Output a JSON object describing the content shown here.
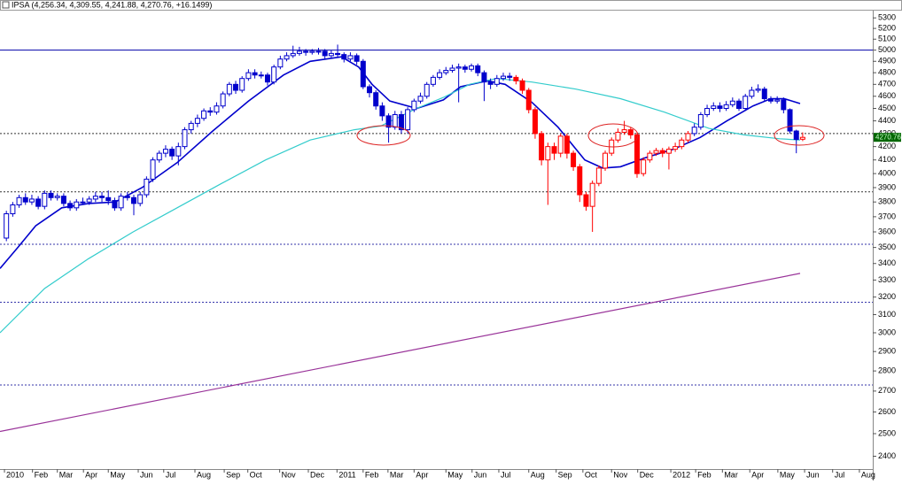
{
  "chart_data": {
    "type": "candlestick",
    "title": "IPSA (4,256.34, 4,309.55, 4,241.88, 4,270.76, +16.1499)",
    "log": true,
    "ylim": [
      2345,
      5370
    ],
    "yticks": [
      2400,
      2500,
      2600,
      2700,
      2800,
      2900,
      3000,
      3100,
      3200,
      3300,
      3400,
      3500,
      3600,
      3700,
      3800,
      3900,
      4000,
      4100,
      4200,
      4300,
      4400,
      4500,
      4600,
      4700,
      4800,
      4900,
      5000,
      5100,
      5200,
      5300
    ],
    "xlim": [
      -1,
      136
    ],
    "xticks": [
      {
        "value": -0.3,
        "label": "2010"
      },
      {
        "value": 4.1,
        "label": "Feb"
      },
      {
        "value": 8,
        "label": "Mar"
      },
      {
        "value": 12.1,
        "label": "Apr"
      },
      {
        "value": 16,
        "label": "May"
      },
      {
        "value": 20.7,
        "label": "Jun"
      },
      {
        "value": 24.7,
        "label": "Jul"
      },
      {
        "value": 29.6,
        "label": "Aug"
      },
      {
        "value": 34.2,
        "label": "Sep"
      },
      {
        "value": 37.9,
        "label": "Oct"
      },
      {
        "value": 42.9,
        "label": "Nov"
      },
      {
        "value": 47.4,
        "label": "Dec"
      },
      {
        "value": 51.9,
        "label": "2011"
      },
      {
        "value": 56,
        "label": "Feb"
      },
      {
        "value": 59.9,
        "label": "Mar"
      },
      {
        "value": 64,
        "label": "Apr"
      },
      {
        "value": 69,
        "label": "May"
      },
      {
        "value": 73.1,
        "label": "Jun"
      },
      {
        "value": 77.3,
        "label": "Jul"
      },
      {
        "value": 82,
        "label": "Aug"
      },
      {
        "value": 86.3,
        "label": "Sep"
      },
      {
        "value": 90.5,
        "label": "Oct"
      },
      {
        "value": 95,
        "label": "Nov"
      },
      {
        "value": 99.1,
        "label": "Dec"
      },
      {
        "value": 104.3,
        "label": "2012"
      },
      {
        "value": 108.2,
        "label": "Feb"
      },
      {
        "value": 112.4,
        "label": "Mar"
      },
      {
        "value": 116.7,
        "label": "Apr"
      },
      {
        "value": 121.1,
        "label": "May"
      },
      {
        "value": 125.3,
        "label": "Jun"
      },
      {
        "value": 129.7,
        "label": "Jul"
      },
      {
        "value": 133.9,
        "label": "Aug"
      }
    ],
    "x": [
      0,
      1,
      2,
      3,
      4,
      5,
      6,
      7,
      8,
      9,
      10,
      11,
      12,
      13,
      14,
      15,
      16,
      17,
      18,
      19,
      20,
      21,
      22,
      23,
      24,
      25,
      26,
      27,
      28,
      29,
      30,
      31,
      32,
      33,
      34,
      35,
      36,
      37,
      38,
      39,
      40,
      41,
      42,
      43,
      44,
      45,
      46,
      47,
      48,
      49,
      50,
      51,
      52,
      53,
      54,
      55,
      56,
      57,
      58,
      59,
      60,
      61,
      62,
      63,
      64,
      65,
      66,
      67,
      68,
      69,
      70,
      71,
      72,
      73,
      74,
      75,
      76,
      77,
      78,
      79,
      80,
      81,
      82,
      83,
      84,
      85,
      86,
      87,
      88,
      89,
      90,
      91,
      92,
      93,
      94,
      95,
      96,
      97,
      98,
      99,
      100,
      101,
      102,
      103,
      104,
      105,
      106,
      107,
      108,
      109,
      110,
      111,
      112,
      113,
      114,
      115,
      116,
      117,
      118,
      119,
      120,
      121,
      122,
      123,
      124,
      125
    ],
    "open": [
      3560,
      3720,
      3780,
      3830,
      3800,
      3820,
      3770,
      3860,
      3830,
      3840,
      3790,
      3760,
      3800,
      3800,
      3820,
      3840,
      3830,
      3810,
      3760,
      3840,
      3830,
      3790,
      3850,
      3960,
      4100,
      4150,
      4180,
      4130,
      4200,
      4330,
      4380,
      4420,
      4480,
      4470,
      4520,
      4620,
      4700,
      4650,
      4750,
      4800,
      4780,
      4780,
      4720,
      4850,
      4920,
      4950,
      4970,
      4990,
      4980,
      4990,
      4990,
      4950,
      4970,
      4960,
      4920,
      4950,
      4900,
      4680,
      4630,
      4520,
      4440,
      4350,
      4450,
      4330,
      4490,
      4560,
      4600,
      4700,
      4760,
      4800,
      4820,
      4840,
      4850,
      4830,
      4860,
      4800,
      4720,
      4700,
      4750,
      4770,
      4760,
      4730,
      4650,
      4490,
      4300,
      4100,
      4200,
      4150,
      4280,
      4150,
      4050,
      3850,
      3770,
      3930,
      4040,
      4150,
      4250,
      4310,
      4330,
      4290,
      4000,
      4100,
      4150,
      4170,
      4150,
      4180,
      4200,
      4250,
      4300,
      4350,
      4450,
      4500,
      4520,
      4500,
      4530,
      4560,
      4500,
      4600,
      4650,
      4660,
      4580,
      4560,
      4570,
      4490,
      4320,
      4256.34
    ],
    "high": [
      3740,
      3800,
      3850,
      3860,
      3850,
      3840,
      3880,
      3880,
      3860,
      3860,
      3810,
      3820,
      3830,
      3840,
      3870,
      3870,
      3880,
      3830,
      3860,
      3870,
      3850,
      3870,
      3980,
      4120,
      4170,
      4210,
      4200,
      4230,
      4350,
      4400,
      4450,
      4500,
      4510,
      4550,
      4640,
      4720,
      4730,
      4770,
      4830,
      4830,
      4810,
      4800,
      4870,
      4950,
      4980,
      5040,
      5030,
      5010,
      5010,
      5020,
      5010,
      5000,
      5050,
      4980,
      4980,
      4970,
      4920,
      4700,
      4650,
      4550,
      4460,
      4480,
      4480,
      4510,
      4580,
      4630,
      4720,
      4780,
      4830,
      4850,
      4870,
      4880,
      4870,
      4880,
      4880,
      4820,
      4750,
      4780,
      4800,
      4800,
      4780,
      4750,
      4670,
      4510,
      4320,
      4230,
      4230,
      4300,
      4300,
      4170,
      4070,
      3870,
      3950,
      4060,
      4170,
      4270,
      4340,
      4400,
      4350,
      4310,
      4120,
      4170,
      4190,
      4190,
      4200,
      4230,
      4270,
      4320,
      4380,
      4470,
      4530,
      4550,
      4550,
      4560,
      4590,
      4580,
      4620,
      4680,
      4700,
      4680,
      4600,
      4600,
      4590,
      4500,
      4330,
      4309.55
    ],
    "low": [
      3540,
      3700,
      3760,
      3780,
      3780,
      3750,
      3750,
      3810,
      3810,
      3770,
      3740,
      3740,
      3780,
      3780,
      3800,
      3800,
      3780,
      3740,
      3740,
      3810,
      3710,
      3770,
      3830,
      3940,
      4080,
      4120,
      4100,
      4060,
      4180,
      4300,
      4350,
      4400,
      4440,
      4450,
      4500,
      4600,
      4620,
      4630,
      4730,
      4750,
      4750,
      4690,
      4700,
      4830,
      4900,
      4930,
      4950,
      4950,
      4960,
      4960,
      4920,
      4930,
      4930,
      4890,
      4900,
      4870,
      4660,
      4590,
      4490,
      4400,
      4230,
      4330,
      4300,
      4300,
      4470,
      4540,
      4580,
      4680,
      4740,
      4780,
      4800,
      4550,
      4800,
      4810,
      4770,
      4560,
      4660,
      4680,
      4730,
      4730,
      4700,
      4620,
      4460,
      4260,
      4060,
      3780,
      4100,
      4120,
      4110,
      4020,
      3800,
      3740,
      3600,
      3910,
      4020,
      4130,
      4230,
      4290,
      4260,
      3970,
      3980,
      4080,
      4130,
      4120,
      4030,
      4160,
      4180,
      4230,
      4280,
      4330,
      4430,
      4480,
      4470,
      4480,
      4510,
      4480,
      4480,
      4580,
      4630,
      4560,
      4540,
      4540,
      4460,
      4300,
      4150,
      4241.88
    ],
    "close": [
      3720,
      3780,
      3830,
      3800,
      3820,
      3770,
      3860,
      3830,
      3840,
      3790,
      3760,
      3800,
      3800,
      3820,
      3840,
      3830,
      3810,
      3760,
      3840,
      3830,
      3790,
      3850,
      3960,
      4100,
      4150,
      4180,
      4130,
      4200,
      4330,
      4380,
      4420,
      4480,
      4470,
      4520,
      4620,
      4700,
      4650,
      4750,
      4800,
      4780,
      4780,
      4720,
      4850,
      4920,
      4950,
      4970,
      4990,
      4980,
      4990,
      4990,
      4950,
      4970,
      4960,
      4920,
      4950,
      4900,
      4680,
      4630,
      4520,
      4440,
      4350,
      4450,
      4330,
      4490,
      4560,
      4600,
      4700,
      4760,
      4800,
      4820,
      4840,
      4850,
      4830,
      4860,
      4800,
      4720,
      4700,
      4750,
      4770,
      4760,
      4730,
      4650,
      4490,
      4300,
      4100,
      4200,
      4150,
      4280,
      4150,
      4050,
      3850,
      3770,
      3930,
      4040,
      4150,
      4250,
      4310,
      4330,
      4290,
      4000,
      4100,
      4150,
      4170,
      4150,
      4180,
      4200,
      4250,
      4300,
      4350,
      4450,
      4500,
      4520,
      4500,
      4530,
      4560,
      4500,
      4600,
      4650,
      4660,
      4580,
      4560,
      4570,
      4490,
      4320,
      4254.61,
      4270.76
    ],
    "colors": [
      "#0000cc",
      "#0000cc",
      "#0000cc",
      "#0000cc",
      "#0000cc",
      "#0000cc",
      "#0000cc",
      "#0000cc",
      "#0000cc",
      "#0000cc",
      "#0000cc",
      "#0000cc",
      "#0000cc",
      "#0000cc",
      "#0000cc",
      "#0000cc",
      "#0000cc",
      "#0000cc",
      "#0000cc",
      "#0000cc",
      "#0000cc",
      "#0000cc",
      "#0000cc",
      "#0000cc",
      "#0000cc",
      "#0000cc",
      "#0000cc",
      "#0000cc",
      "#0000cc",
      "#0000cc",
      "#0000cc",
      "#0000cc",
      "#0000cc",
      "#0000cc",
      "#0000cc",
      "#0000cc",
      "#0000cc",
      "#0000cc",
      "#0000cc",
      "#0000cc",
      "#0000cc",
      "#0000cc",
      "#0000cc",
      "#0000cc",
      "#0000cc",
      "#0000cc",
      "#0000cc",
      "#0000cc",
      "#0000cc",
      "#0000cc",
      "#0000cc",
      "#0000cc",
      "#0000cc",
      "#0000cc",
      "#0000cc",
      "#0000cc",
      "#0000cc",
      "#0000cc",
      "#0000cc",
      "#0000cc",
      "#0000cc",
      "#0000cc",
      "#0000cc",
      "#0000cc",
      "#0000cc",
      "#0000cc",
      "#0000cc",
      "#0000cc",
      "#0000cc",
      "#0000cc",
      "#0000cc",
      "#0000cc",
      "#0000cc",
      "#0000cc",
      "#0000cc",
      "#0000cc",
      "#0000cc",
      "#0000cc",
      "#0000cc",
      "#0000cc",
      "#ff0000",
      "#ff0000",
      "#ff0000",
      "#ff0000",
      "#ff0000",
      "#ff0000",
      "#ff0000",
      "#ff0000",
      "#ff0000",
      "#ff0000",
      "#ff0000",
      "#ff0000",
      "#ff0000",
      "#ff0000",
      "#ff0000",
      "#ff0000",
      "#ff0000",
      "#ff0000",
      "#ff0000",
      "#ff0000",
      "#ff0000",
      "#ff0000",
      "#ff0000",
      "#ff0000",
      "#ff0000",
      "#ff0000",
      "#ff0000",
      "#ff0000",
      "#0000cc",
      "#0000cc",
      "#0000cc",
      "#0000cc",
      "#0000cc",
      "#0000cc",
      "#0000cc",
      "#0000cc",
      "#0000cc",
      "#0000cc",
      "#0000cc",
      "#0000cc",
      "#0000cc",
      "#0000cc",
      "#0000cc",
      "#0000cc",
      "#0000cc",
      "#ff0000"
    ],
    "lines": [
      {
        "color": "#0000cc",
        "x": [
          -1,
          1.8,
          4.6,
          8.7,
          12.9,
          17.1,
          21.3,
          26.8,
          32.4,
          38,
          43.5,
          47.7,
          52.6,
          55.3,
          57.4,
          60.2,
          64.4,
          68.6,
          71.3,
          75.5,
          78.3,
          82.5,
          86.6,
          90.8,
          93.6,
          96.4,
          100.5,
          104.7,
          108.9,
          113.1,
          117.2,
          120,
          122.1,
          124.6
        ],
        "values": [
          3370,
          3500,
          3640,
          3760,
          3790,
          3800,
          3900,
          4080,
          4320,
          4560,
          4780,
          4900,
          4940,
          4850,
          4700,
          4560,
          4500,
          4570,
          4680,
          4730,
          4700,
          4550,
          4350,
          4100,
          4040,
          4050,
          4120,
          4180,
          4270,
          4400,
          4520,
          4580,
          4580,
          4540
        ]
      },
      {
        "color": "#33cccc",
        "x": [
          -1,
          6,
          12.9,
          19.9,
          26.8,
          33.8,
          40.7,
          47.7,
          54.6,
          58.8,
          64.4,
          68.6,
          72.7,
          76.9,
          82.5,
          89.4,
          96.4,
          103.3,
          110.3,
          115.8,
          121.4,
          124.6
        ],
        "values": [
          3000,
          3250,
          3430,
          3600,
          3760,
          3930,
          4100,
          4250,
          4330,
          4360,
          4500,
          4590,
          4700,
          4750,
          4720,
          4660,
          4580,
          4470,
          4340,
          4290,
          4260,
          4250
        ]
      },
      {
        "color": "#993399",
        "x": [
          -1,
          124.6
        ],
        "values": [
          2510,
          3340
        ]
      }
    ],
    "hlines": [
      {
        "value": 5000,
        "color": "#0000aa",
        "dash": false
      },
      {
        "value": 4300,
        "color": "#333333",
        "dash": true
      },
      {
        "value": 3870,
        "color": "#333333",
        "dash": true
      },
      {
        "value": 3520,
        "color": "#3333aa",
        "dash": true
      },
      {
        "value": 3170,
        "color": "#3333aa",
        "dash": true
      },
      {
        "value": 2730,
        "color": "#3333aa",
        "dash": true
      }
    ]
  }
}
